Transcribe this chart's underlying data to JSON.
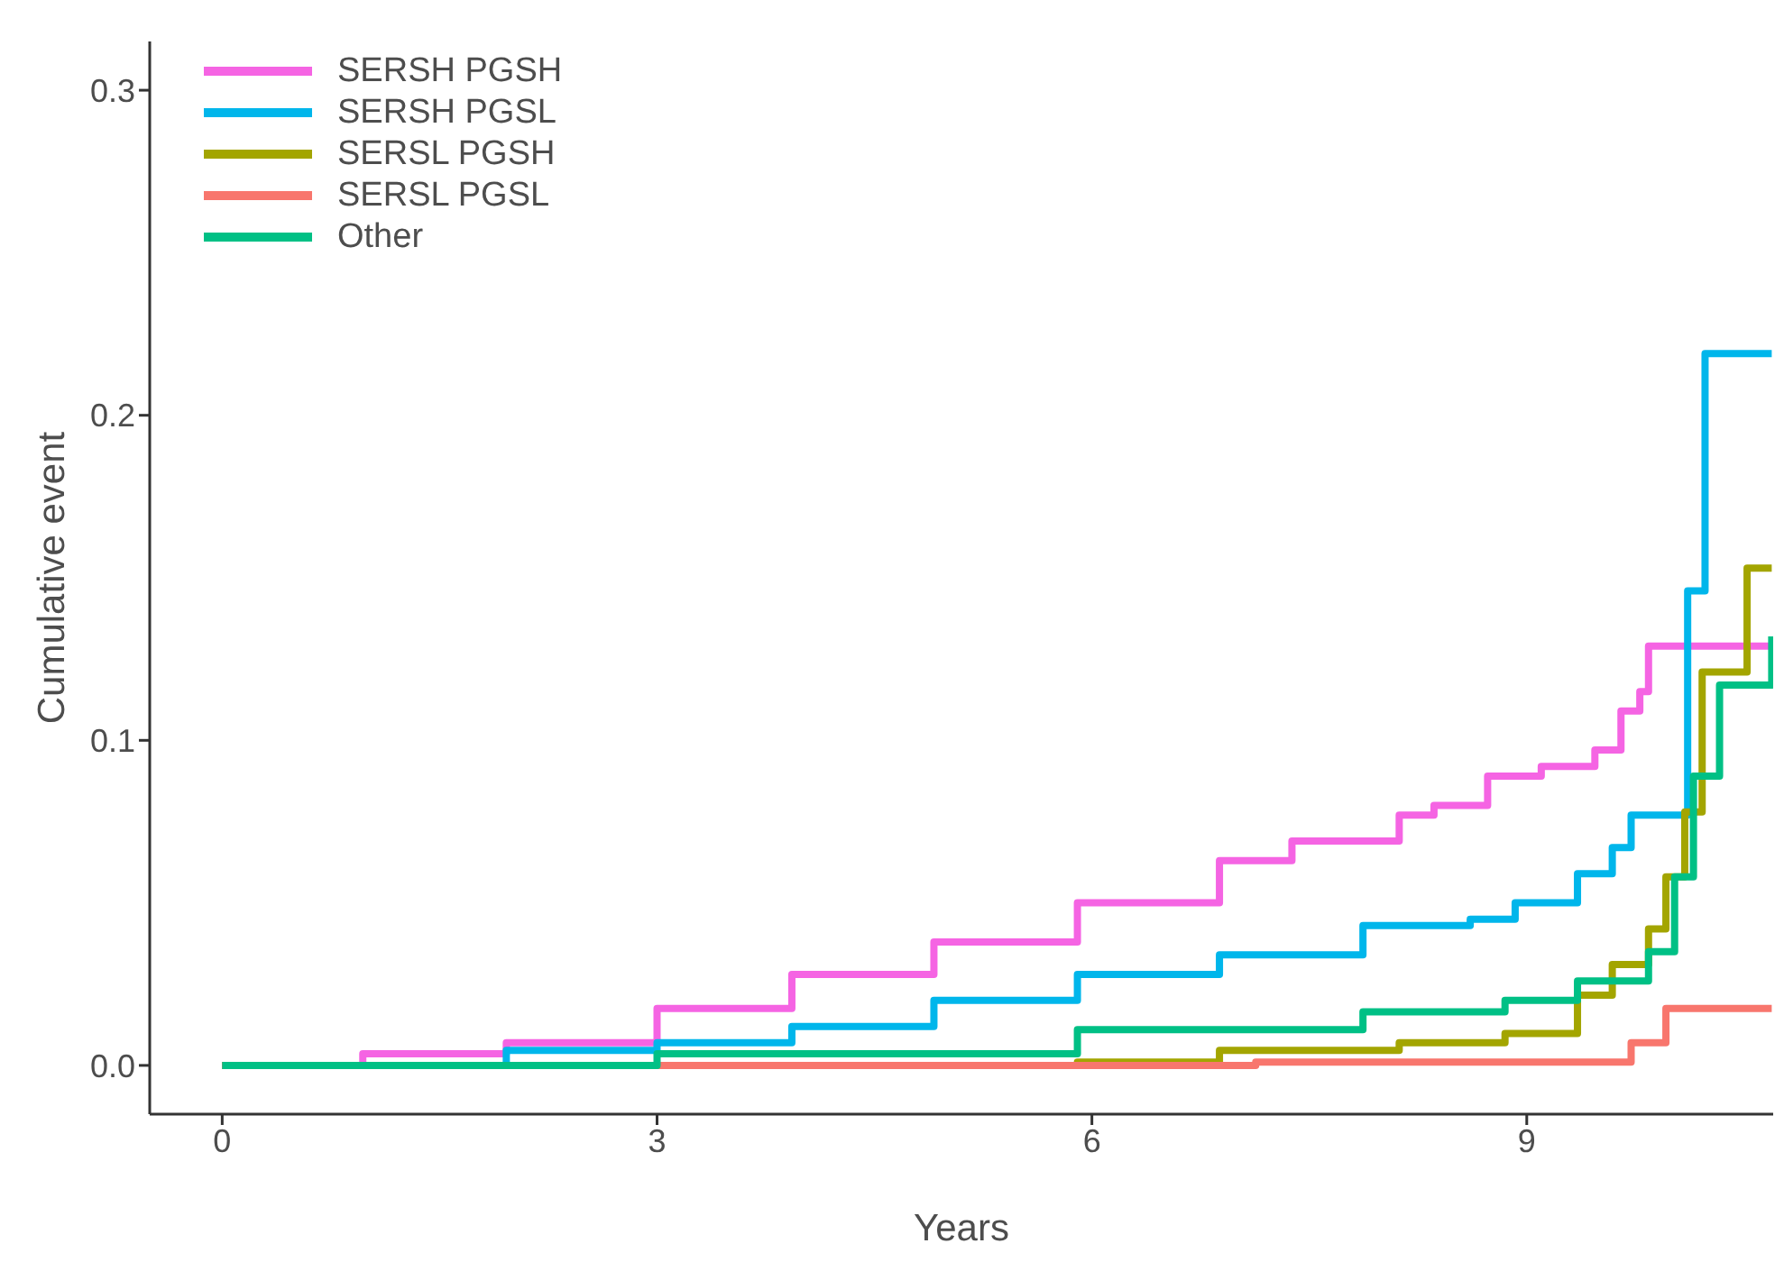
{
  "chart_data": {
    "type": "step",
    "xlabel": "Years",
    "ylabel": "Cumulative event",
    "xlim": [
      -0.5,
      10.7
    ],
    "ylim": [
      -0.015,
      0.315
    ],
    "xticks": [
      0,
      3,
      6,
      9
    ],
    "yticks": [
      {
        "value": 0,
        "label": "0.0"
      },
      {
        "value": 0.1,
        "label": "0.1"
      },
      {
        "value": 0.2,
        "label": "0.2"
      },
      {
        "value": 0.3,
        "label": "0.3"
      }
    ],
    "grid": false,
    "legend": "top left",
    "line_style": "solid",
    "series": [
      {
        "name": "SERSH PGSH",
        "color": "#f564e3",
        "x": [
          0,
          0.97,
          1.96,
          3,
          3.93,
          4.91,
          5.9,
          6.88,
          7.38,
          8.12,
          8.36,
          8.73,
          9.1,
          9.47,
          9.65,
          9.78,
          9.84,
          10.69
        ],
        "values": [
          0,
          0.0036,
          0.007,
          0.0175,
          0.028,
          0.038,
          0.05,
          0.063,
          0.069,
          0.077,
          0.08,
          0.089,
          0.092,
          0.097,
          0.109,
          0.115,
          0.129,
          0.129
        ]
      },
      {
        "name": "SERSH PGSL",
        "color": "#00b6eb",
        "x": [
          0,
          1.96,
          3,
          3.93,
          4.91,
          5.9,
          6.88,
          7.87,
          8.61,
          8.92,
          9.35,
          9.59,
          9.72,
          10.11,
          10.23,
          10.69
        ],
        "values": [
          0,
          0.0046,
          0.007,
          0.012,
          0.02,
          0.028,
          0.034,
          0.043,
          0.045,
          0.05,
          0.059,
          0.067,
          0.077,
          0.146,
          0.219,
          0.219
        ]
      },
      {
        "name": "SERSL PGSH",
        "color": "#a3a500",
        "x": [
          0,
          5.9,
          6.88,
          8.12,
          8.85,
          9.35,
          9.59,
          9.84,
          9.96,
          10.09,
          10.21,
          10.52,
          10.69
        ],
        "values": [
          0,
          0.001,
          0.0046,
          0.007,
          0.0098,
          0.0216,
          0.031,
          0.042,
          0.058,
          0.078,
          0.121,
          0.153,
          0.153
        ]
      },
      {
        "name": "SERSL PGSL",
        "color": "#f8766d",
        "x": [
          0,
          7.13,
          9.72,
          9.96,
          10.69
        ],
        "values": [
          0,
          0.001,
          0.007,
          0.0175,
          0.0175
        ]
      },
      {
        "name": "Other",
        "color": "#00c085",
        "x": [
          0,
          3,
          5.9,
          7.87,
          8.85,
          9.35,
          9.84,
          10.02,
          10.15,
          10.33,
          10.69
        ],
        "values": [
          0,
          0.0036,
          0.011,
          0.0165,
          0.02,
          0.026,
          0.035,
          0.058,
          0.089,
          0.117,
          0.132
        ]
      }
    ]
  }
}
